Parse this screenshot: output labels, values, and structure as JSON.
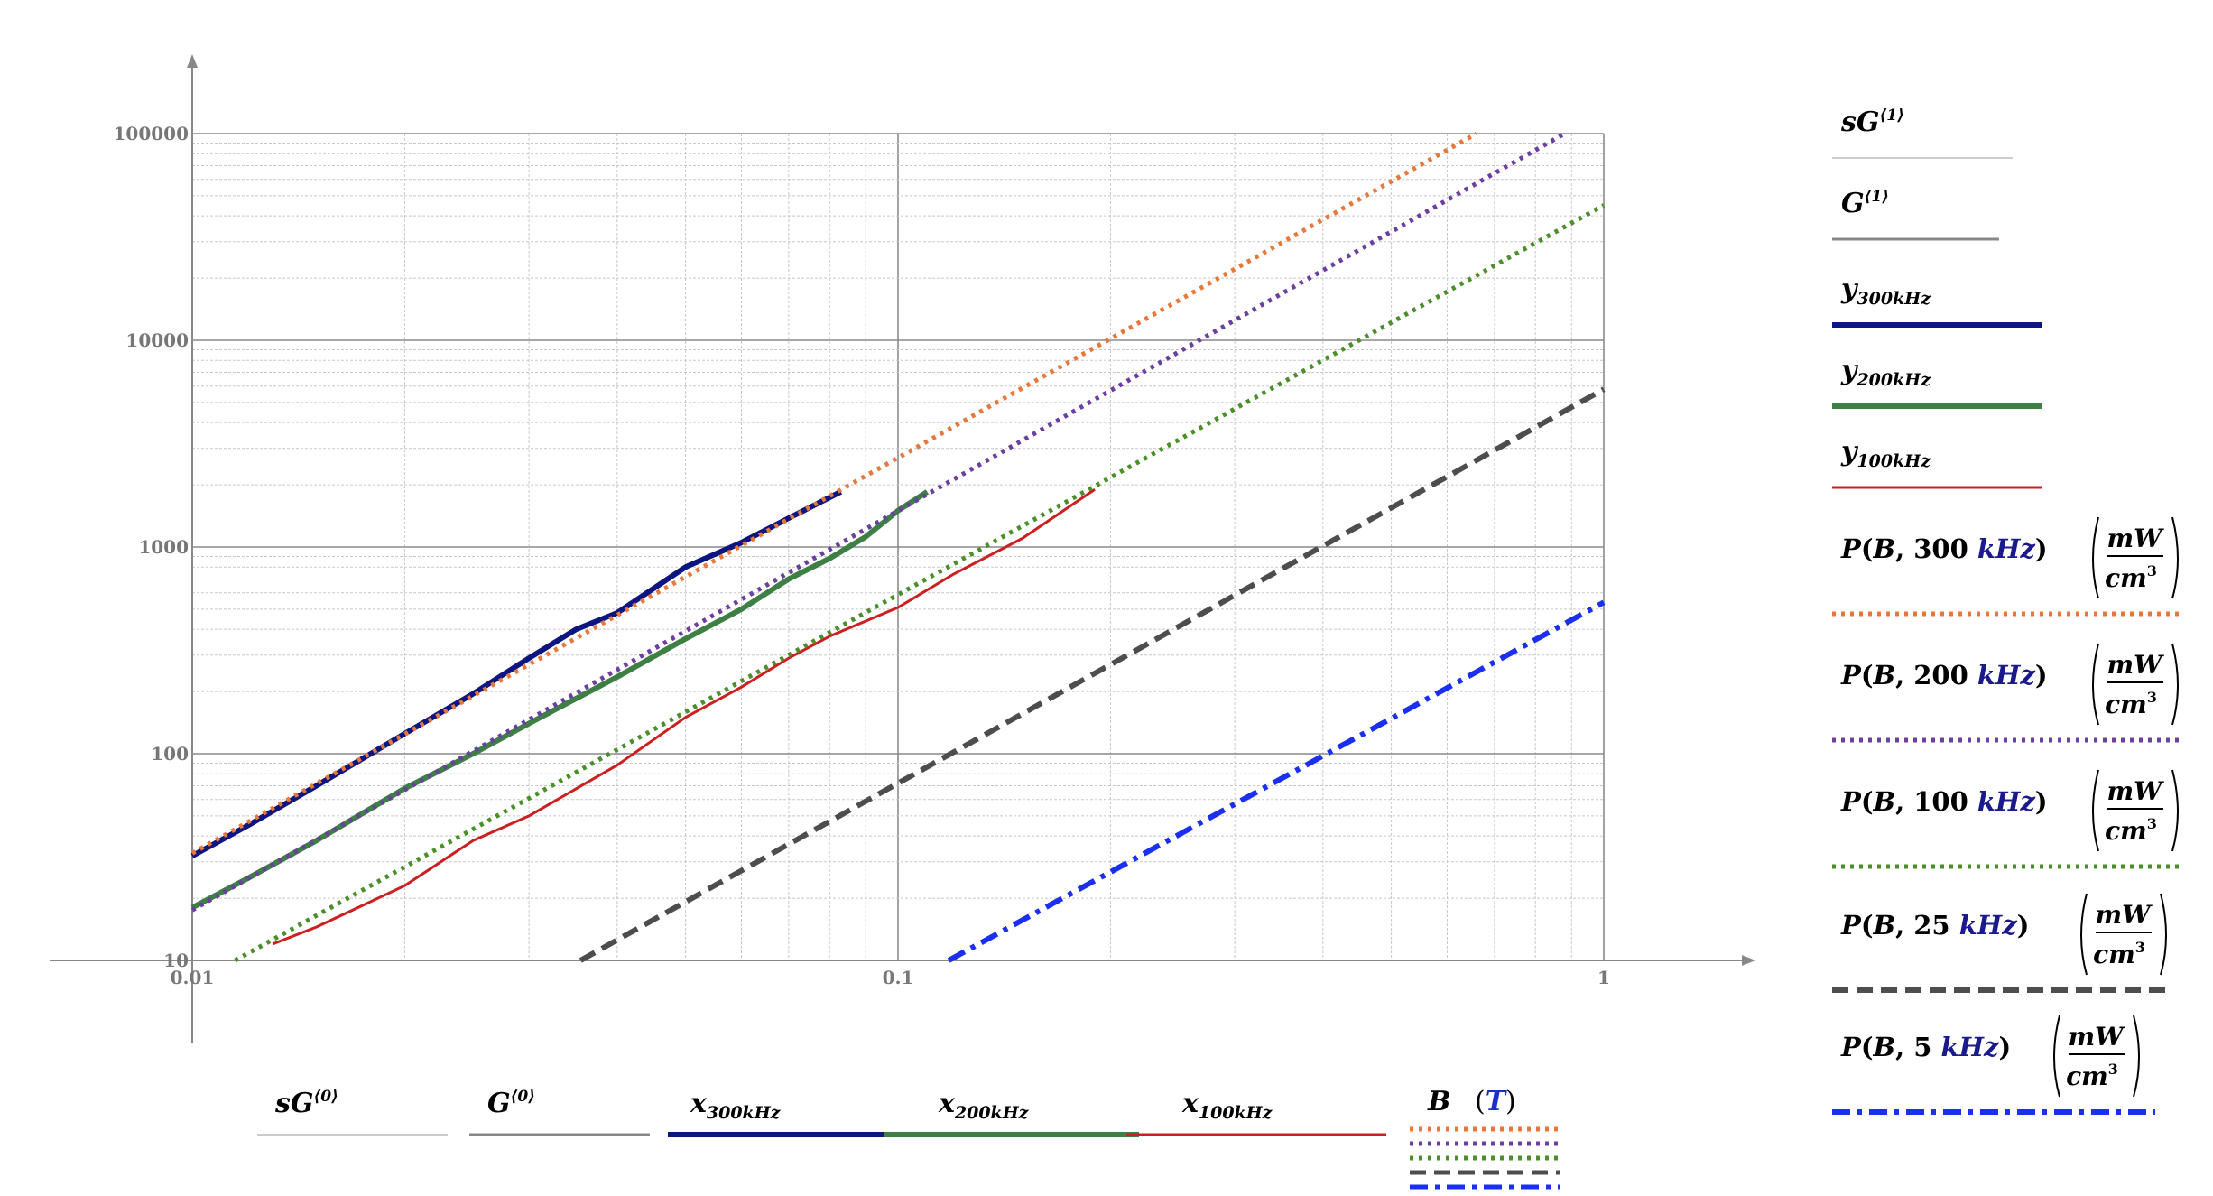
{
  "chart_data": {
    "type": "line",
    "xscale": "log",
    "yscale": "log",
    "xlim": [
      0.01,
      1
    ],
    "ylim": [
      10,
      100000
    ],
    "grid": true,
    "x_ticks": [
      "0.01",
      "0.1",
      "1"
    ],
    "y_ticks": [
      "10",
      "100",
      "1000",
      "10000",
      "100000"
    ],
    "x_legend": {
      "items": [
        {
          "label": "sG",
          "sup": "⟨0⟩",
          "sub": "",
          "color": "#bbbbbb",
          "style": "thin"
        },
        {
          "label": "G",
          "sup": "⟨0⟩",
          "sub": "",
          "color": "#888888",
          "style": "solid"
        },
        {
          "label": "x",
          "sup": "",
          "sub": "300kHz",
          "color": "#0d1580",
          "style": "thick"
        },
        {
          "label": "x",
          "sup": "",
          "sub": "200kHz",
          "color": "#3d7f45",
          "style": "thick"
        },
        {
          "label": "x",
          "sup": "",
          "sub": "100kHz",
          "color": "#cc1f1f",
          "style": "solid"
        }
      ],
      "axis_label": "B",
      "axis_unit": "T"
    },
    "y_legend": {
      "items": [
        {
          "label": "sG",
          "sup": "⟨1⟩",
          "sub": "",
          "color": "#bbbbbb",
          "style": "thin"
        },
        {
          "label": "G",
          "sup": "⟨1⟩",
          "sub": "",
          "color": "#888888",
          "style": "solid"
        },
        {
          "label": "y",
          "sup": "",
          "sub": "300kHz",
          "color": "#0d1580",
          "style": "thick"
        },
        {
          "label": "y",
          "sup": "",
          "sub": "200kHz",
          "color": "#3d7f45",
          "style": "thick"
        },
        {
          "label": "y",
          "sup": "",
          "sub": "100kHz",
          "color": "#cc1f1f",
          "style": "solid"
        }
      ],
      "functions": [
        {
          "name": "P",
          "arg": "B",
          "freq": "300",
          "freq_unit": "kHz",
          "unit_num": "mW",
          "unit_den": "cm",
          "unit_den_pow": "3",
          "color": "#e8773a",
          "style": "dotted"
        },
        {
          "name": "P",
          "arg": "B",
          "freq": "200",
          "freq_unit": "kHz",
          "unit_num": "mW",
          "unit_den": "cm",
          "unit_den_pow": "3",
          "color": "#6a3fa0",
          "style": "dotted"
        },
        {
          "name": "P",
          "arg": "B",
          "freq": "100",
          "freq_unit": "kHz",
          "unit_num": "mW",
          "unit_den": "cm",
          "unit_den_pow": "3",
          "color": "#4a8f2a",
          "style": "dotted"
        },
        {
          "name": "P",
          "arg": "B",
          "freq": "25",
          "freq_unit": "kHz",
          "unit_num": "mW",
          "unit_den": "cm",
          "unit_den_pow": "3",
          "color": "#4d4d4d",
          "style": "dashed"
        },
        {
          "name": "P",
          "arg": "B",
          "freq": "5",
          "freq_unit": "kHz",
          "unit_num": "mW",
          "unit_den": "cm",
          "unit_den_pow": "3",
          "color": "#1a2ff0",
          "style": "dashdot"
        }
      ]
    },
    "series": [
      {
        "name": "y300kHz",
        "color": "#0d1580",
        "style": "thick",
        "x": [
          0.01,
          0.012,
          0.015,
          0.02,
          0.025,
          0.03,
          0.035,
          0.04,
          0.05,
          0.06,
          0.07,
          0.083
        ],
        "y": [
          32,
          45,
          70,
          125,
          195,
          290,
          400,
          480,
          800,
          1050,
          1380,
          1850
        ]
      },
      {
        "name": "y200kHz",
        "color": "#3d7f45",
        "style": "thick",
        "x": [
          0.01,
          0.012,
          0.015,
          0.02,
          0.025,
          0.03,
          0.035,
          0.04,
          0.05,
          0.06,
          0.07,
          0.08,
          0.09,
          0.1,
          0.11
        ],
        "y": [
          18,
          25,
          38,
          68,
          100,
          140,
          185,
          235,
          360,
          500,
          700,
          880,
          1120,
          1500,
          1850
        ]
      },
      {
        "name": "y100kHz",
        "color": "#cc1f1f",
        "style": "solid",
        "x": [
          0.013,
          0.015,
          0.02,
          0.025,
          0.03,
          0.04,
          0.05,
          0.06,
          0.07,
          0.08,
          0.1,
          0.12,
          0.15,
          0.19
        ],
        "y": [
          12,
          14.5,
          23,
          38,
          50,
          88,
          150,
          210,
          290,
          370,
          510,
          740,
          1100,
          1900
        ]
      },
      {
        "name": "P(B,300kHz)",
        "color": "#e8773a",
        "style": "dotted",
        "x": [
          0.01,
          0.66
        ],
        "y": [
          33,
          100000
        ]
      },
      {
        "name": "P(B,200kHz)",
        "color": "#6a3fa0",
        "style": "dotted",
        "x": [
          0.01,
          0.88
        ],
        "y": [
          17.5,
          100000
        ]
      },
      {
        "name": "P(B,100kHz)",
        "color": "#4a8f2a",
        "style": "dotted",
        "x": [
          0.0115,
          1.0
        ],
        "y": [
          10,
          45000
        ]
      },
      {
        "name": "P(B,25kHz)",
        "color": "#4d4d4d",
        "style": "dashed",
        "x": [
          0.0355,
          1.0
        ],
        "y": [
          10,
          5800
        ]
      },
      {
        "name": "P(B,5kHz)",
        "color": "#1a2ff0",
        "style": "dashdot",
        "x": [
          0.118,
          1.0
        ],
        "y": [
          10,
          540
        ]
      }
    ]
  }
}
